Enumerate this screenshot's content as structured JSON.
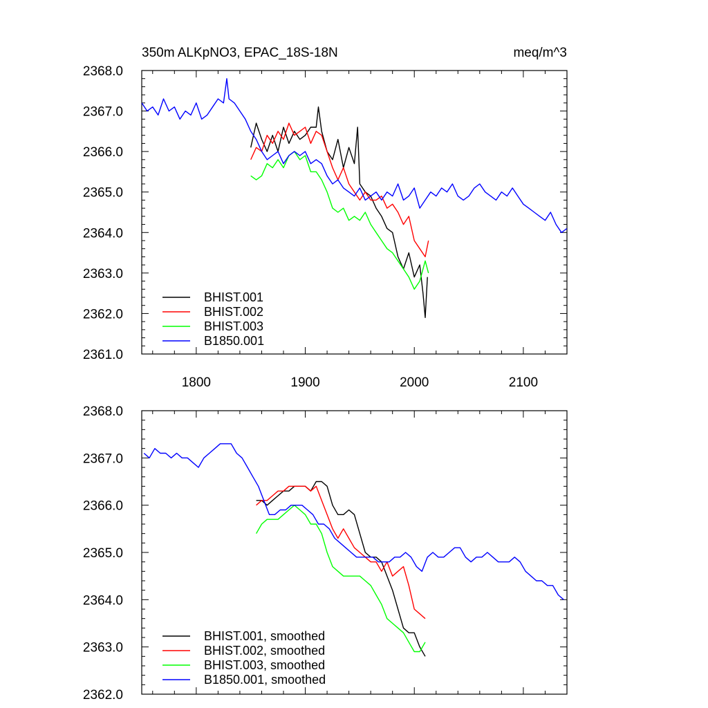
{
  "chart_data": [
    {
      "type": "line",
      "title": "350m ALKpNO3, EPAC_18S-18N",
      "units": "meq/m^3",
      "xlabel": "",
      "ylabel": "",
      "xlim": [
        1750,
        2140
      ],
      "ylim": [
        2361.0,
        2368.0
      ],
      "x_ticks": [
        1800,
        1900,
        2000,
        2100
      ],
      "x_tick_labels": [
        "1800",
        "1900",
        "2000",
        "2100"
      ],
      "y_ticks": [
        2361.0,
        2362.0,
        2363.0,
        2364.0,
        2365.0,
        2366.0,
        2367.0,
        2368.0
      ],
      "y_tick_labels": [
        "2361.0",
        "2362.0",
        "2363.0",
        "2364.0",
        "2365.0",
        "2366.0",
        "2367.0",
        "2368.0"
      ],
      "legend_position": "bottom-left",
      "series": [
        {
          "name": "BHIST.001",
          "color": "#000000",
          "x": [
            1850,
            1855,
            1860,
            1865,
            1870,
            1875,
            1880,
            1885,
            1890,
            1895,
            1900,
            1905,
            1910,
            1912,
            1915,
            1920,
            1925,
            1930,
            1935,
            1940,
            1945,
            1948,
            1950,
            1955,
            1960,
            1965,
            1970,
            1975,
            1980,
            1985,
            1990,
            1995,
            2000,
            2005,
            2008,
            2010,
            2012
          ],
          "y": [
            2366.1,
            2366.7,
            2366.3,
            2366.0,
            2366.4,
            2366.0,
            2366.6,
            2366.2,
            2366.5,
            2366.3,
            2366.4,
            2366.6,
            2366.6,
            2367.1,
            2366.5,
            2366.0,
            2365.8,
            2366.3,
            2365.6,
            2366.1,
            2365.7,
            2366.6,
            2365.2,
            2365.0,
            2364.9,
            2364.6,
            2364.4,
            2364.1,
            2364.0,
            2363.4,
            2363.1,
            2363.5,
            2362.9,
            2363.2,
            2362.5,
            2361.9,
            2362.9
          ]
        },
        {
          "name": "BHIST.002",
          "color": "#ff0000",
          "x": [
            1850,
            1855,
            1860,
            1865,
            1870,
            1875,
            1880,
            1885,
            1890,
            1895,
            1900,
            1905,
            1910,
            1915,
            1920,
            1925,
            1930,
            1935,
            1940,
            1945,
            1950,
            1955,
            1960,
            1965,
            1970,
            1975,
            1980,
            1985,
            1990,
            1995,
            2000,
            2005,
            2010,
            2013
          ],
          "y": [
            2365.8,
            2366.1,
            2366.0,
            2366.4,
            2366.2,
            2366.5,
            2366.3,
            2366.7,
            2366.4,
            2366.5,
            2366.6,
            2366.2,
            2366.5,
            2366.4,
            2366.0,
            2365.6,
            2365.3,
            2365.6,
            2365.2,
            2365.0,
            2364.8,
            2365.0,
            2364.8,
            2364.8,
            2364.9,
            2364.6,
            2364.7,
            2364.5,
            2364.2,
            2364.4,
            2363.8,
            2363.6,
            2363.4,
            2363.8
          ]
        },
        {
          "name": "BHIST.003",
          "color": "#00ff00",
          "x": [
            1850,
            1855,
            1860,
            1865,
            1870,
            1875,
            1880,
            1885,
            1890,
            1895,
            1900,
            1905,
            1910,
            1915,
            1920,
            1925,
            1930,
            1935,
            1940,
            1945,
            1950,
            1955,
            1960,
            1965,
            1970,
            1975,
            1980,
            1985,
            1990,
            1995,
            2000,
            2005,
            2010,
            2013
          ],
          "y": [
            2365.4,
            2365.3,
            2365.4,
            2365.7,
            2365.6,
            2365.8,
            2365.6,
            2365.9,
            2366.0,
            2365.8,
            2365.9,
            2365.5,
            2365.5,
            2365.3,
            2365.0,
            2364.6,
            2364.5,
            2364.6,
            2364.3,
            2364.4,
            2364.3,
            2364.5,
            2364.2,
            2364.0,
            2363.8,
            2363.6,
            2363.5,
            2363.3,
            2363.1,
            2362.9,
            2362.6,
            2362.8,
            2363.3,
            2363.0
          ]
        },
        {
          "name": "B1850.001",
          "color": "#0000ff",
          "x": [
            1750,
            1755,
            1760,
            1765,
            1770,
            1775,
            1780,
            1785,
            1790,
            1795,
            1800,
            1805,
            1810,
            1815,
            1820,
            1825,
            1828,
            1830,
            1835,
            1840,
            1845,
            1850,
            1855,
            1860,
            1865,
            1870,
            1875,
            1880,
            1885,
            1890,
            1895,
            1900,
            1905,
            1910,
            1915,
            1920,
            1925,
            1930,
            1935,
            1940,
            1945,
            1950,
            1955,
            1960,
            1965,
            1970,
            1975,
            1980,
            1985,
            1990,
            1995,
            2000,
            2005,
            2010,
            2015,
            2020,
            2025,
            2030,
            2035,
            2040,
            2045,
            2050,
            2055,
            2060,
            2065,
            2070,
            2075,
            2080,
            2085,
            2090,
            2095,
            2100,
            2105,
            2110,
            2115,
            2120,
            2125,
            2130,
            2135,
            2140
          ],
          "y": [
            2367.2,
            2367.0,
            2367.1,
            2366.9,
            2367.3,
            2367.0,
            2367.1,
            2366.8,
            2367.0,
            2366.9,
            2367.2,
            2366.8,
            2366.9,
            2367.1,
            2367.3,
            2367.2,
            2367.8,
            2367.3,
            2367.2,
            2367.0,
            2366.8,
            2366.5,
            2366.3,
            2366.0,
            2365.8,
            2365.9,
            2366.0,
            2365.7,
            2365.9,
            2366.0,
            2365.9,
            2366.0,
            2365.7,
            2365.8,
            2365.7,
            2365.4,
            2365.2,
            2365.3,
            2365.1,
            2365.0,
            2364.9,
            2365.1,
            2364.8,
            2364.9,
            2365.0,
            2364.8,
            2365.0,
            2364.9,
            2365.2,
            2364.8,
            2364.9,
            2365.1,
            2364.6,
            2364.8,
            2365.0,
            2364.9,
            2365.1,
            2365.0,
            2365.2,
            2364.9,
            2364.8,
            2364.9,
            2365.1,
            2365.2,
            2365.0,
            2364.9,
            2364.8,
            2365.0,
            2364.9,
            2365.1,
            2364.9,
            2364.7,
            2364.6,
            2364.5,
            2364.4,
            2364.3,
            2364.5,
            2364.2,
            2364.0,
            2364.1
          ]
        }
      ]
    },
    {
      "type": "line",
      "title": "",
      "xlabel": "",
      "ylabel": "",
      "xlim": [
        1750,
        2140
      ],
      "ylim": [
        2362.0,
        2368.0
      ],
      "x_ticks": [
        1800,
        1900,
        2000,
        2100
      ],
      "x_tick_labels": [],
      "y_ticks": [
        2362.0,
        2363.0,
        2364.0,
        2365.0,
        2366.0,
        2367.0,
        2368.0
      ],
      "y_tick_labels": [
        "2362.0",
        "2363.0",
        "2364.0",
        "2365.0",
        "2366.0",
        "2367.0",
        "2368.0"
      ],
      "legend_position": "bottom-left",
      "series": [
        {
          "name": "BHIST.001, smoothed",
          "color": "#000000",
          "x": [
            1855,
            1860,
            1865,
            1870,
            1875,
            1880,
            1885,
            1890,
            1895,
            1900,
            1905,
            1910,
            1915,
            1920,
            1925,
            1930,
            1935,
            1940,
            1945,
            1950,
            1955,
            1960,
            1965,
            1970,
            1975,
            1980,
            1985,
            1990,
            1995,
            2000,
            2005,
            2010
          ],
          "y": [
            2366.1,
            2366.1,
            2366.0,
            2366.1,
            2366.2,
            2366.3,
            2366.3,
            2366.4,
            2366.4,
            2366.4,
            2366.3,
            2366.5,
            2366.5,
            2366.4,
            2366.0,
            2365.8,
            2365.8,
            2365.9,
            2365.8,
            2365.4,
            2365.0,
            2364.9,
            2364.9,
            2364.8,
            2364.5,
            2364.2,
            2363.8,
            2363.4,
            2363.3,
            2363.3,
            2363.0,
            2362.8
          ]
        },
        {
          "name": "BHIST.002, smoothed",
          "color": "#ff0000",
          "x": [
            1855,
            1860,
            1865,
            1870,
            1875,
            1880,
            1885,
            1890,
            1895,
            1900,
            1905,
            1910,
            1915,
            1920,
            1925,
            1930,
            1935,
            1940,
            1945,
            1950,
            1955,
            1960,
            1965,
            1970,
            1975,
            1980,
            1985,
            1990,
            1995,
            2000,
            2005,
            2010
          ],
          "y": [
            2366.0,
            2366.1,
            2366.1,
            2366.2,
            2366.3,
            2366.3,
            2366.4,
            2366.4,
            2366.4,
            2366.4,
            2366.3,
            2366.4,
            2366.1,
            2365.8,
            2365.5,
            2365.3,
            2365.5,
            2365.3,
            2365.1,
            2365.0,
            2364.9,
            2364.8,
            2364.8,
            2364.6,
            2364.8,
            2364.5,
            2364.6,
            2364.7,
            2364.3,
            2363.8,
            2363.7,
            2363.6
          ]
        },
        {
          "name": "BHIST.003, smoothed",
          "color": "#00ff00",
          "x": [
            1855,
            1860,
            1865,
            1870,
            1875,
            1880,
            1885,
            1890,
            1895,
            1900,
            1905,
            1910,
            1915,
            1920,
            1925,
            1930,
            1935,
            1940,
            1945,
            1950,
            1955,
            1960,
            1965,
            1970,
            1975,
            1980,
            1985,
            1990,
            1995,
            2000,
            2005,
            2010
          ],
          "y": [
            2365.4,
            2365.6,
            2365.7,
            2365.7,
            2365.7,
            2365.8,
            2365.9,
            2366.0,
            2365.9,
            2365.8,
            2365.6,
            2365.6,
            2365.4,
            2365.0,
            2364.7,
            2364.6,
            2364.5,
            2364.5,
            2364.5,
            2364.5,
            2364.4,
            2364.3,
            2364.1,
            2363.9,
            2363.6,
            2363.5,
            2363.4,
            2363.3,
            2363.1,
            2362.9,
            2362.9,
            2363.1
          ]
        },
        {
          "name": "B1850.001, smoothed",
          "color": "#0000ff",
          "x": [
            1752,
            1757,
            1762,
            1767,
            1772,
            1777,
            1782,
            1787,
            1792,
            1797,
            1802,
            1807,
            1812,
            1817,
            1822,
            1827,
            1832,
            1837,
            1842,
            1847,
            1852,
            1857,
            1862,
            1867,
            1872,
            1877,
            1882,
            1887,
            1892,
            1897,
            1902,
            1907,
            1912,
            1917,
            1922,
            1927,
            1932,
            1937,
            1942,
            1947,
            1952,
            1957,
            1962,
            1967,
            1972,
            1977,
            1982,
            1987,
            1992,
            1997,
            2002,
            2007,
            2012,
            2017,
            2022,
            2027,
            2032,
            2037,
            2042,
            2047,
            2052,
            2057,
            2062,
            2067,
            2072,
            2077,
            2082,
            2087,
            2092,
            2097,
            2102,
            2107,
            2112,
            2117,
            2122,
            2127,
            2132,
            2137
          ],
          "y": [
            2367.1,
            2367.0,
            2367.2,
            2367.1,
            2367.1,
            2367.0,
            2367.1,
            2367.0,
            2367.0,
            2366.9,
            2366.8,
            2367.0,
            2367.1,
            2367.2,
            2367.3,
            2367.3,
            2367.3,
            2367.1,
            2367.0,
            2366.8,
            2366.6,
            2366.4,
            2366.1,
            2365.8,
            2365.8,
            2365.9,
            2365.9,
            2366.0,
            2366.0,
            2366.0,
            2365.9,
            2365.8,
            2365.6,
            2365.6,
            2365.5,
            2365.3,
            2365.2,
            2365.1,
            2365.0,
            2364.9,
            2364.9,
            2364.9,
            2364.9,
            2364.8,
            2364.8,
            2364.8,
            2364.9,
            2364.9,
            2365.0,
            2364.9,
            2364.7,
            2364.6,
            2364.9,
            2365.0,
            2364.9,
            2364.9,
            2365.0,
            2365.1,
            2365.1,
            2364.9,
            2364.8,
            2364.9,
            2364.9,
            2365.0,
            2364.9,
            2364.8,
            2364.8,
            2364.8,
            2364.9,
            2364.8,
            2364.6,
            2364.5,
            2364.4,
            2364.4,
            2364.3,
            2364.3,
            2364.1,
            2364.0
          ]
        }
      ]
    }
  ]
}
